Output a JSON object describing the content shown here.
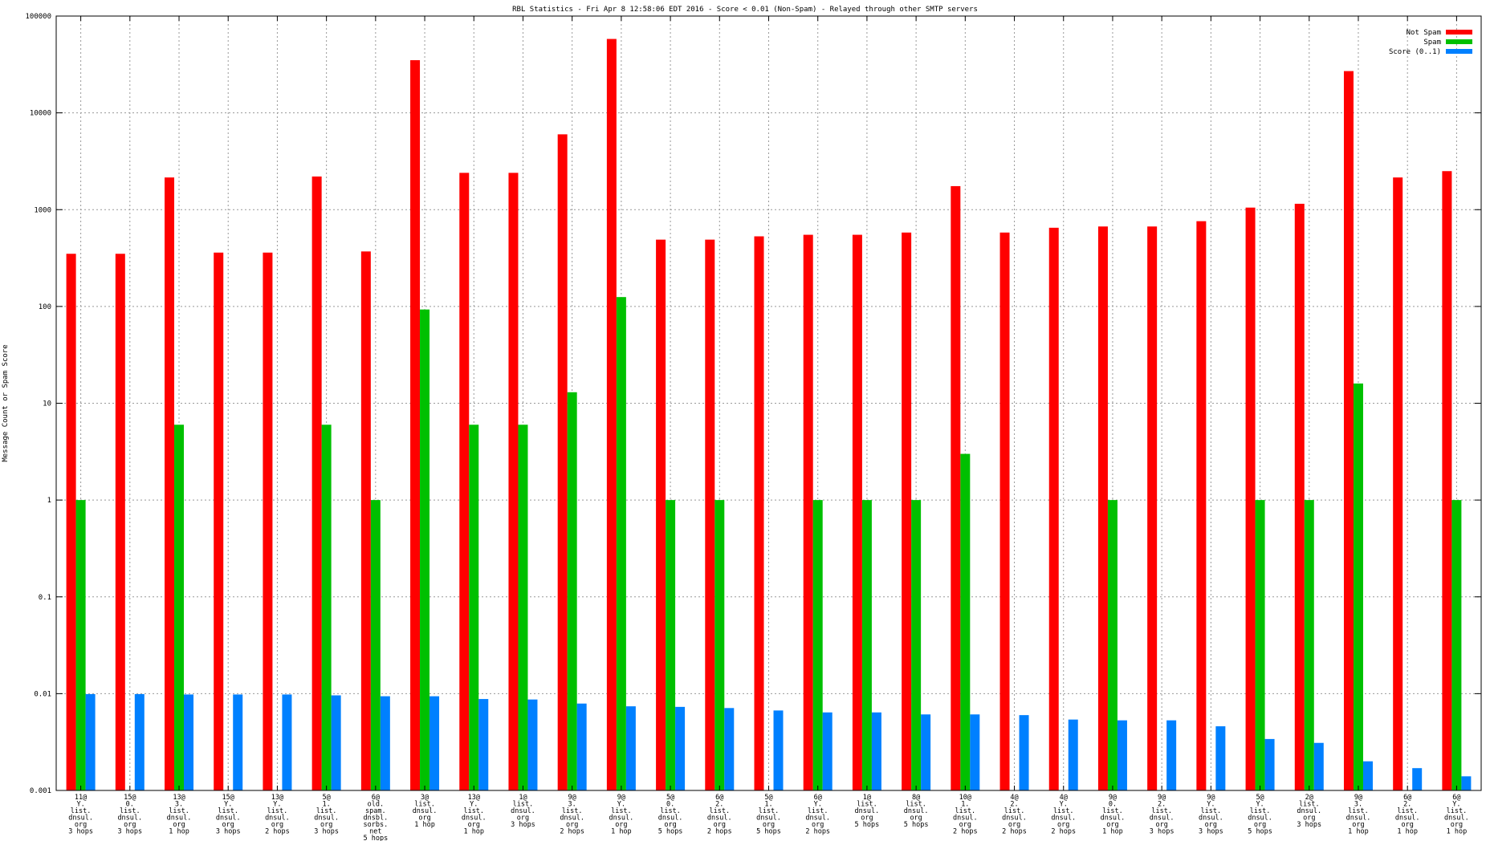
{
  "chart_data": {
    "type": "bar",
    "title": "RBL Statistics - Fri Apr  8 12:58:06 EDT 2016 - Score < 0.01 (Non-Spam) - Relayed through other SMTP servers",
    "xlabel": "",
    "ylabel": "Message Count or Spam Score",
    "yscale": "log",
    "ylim": [
      0.001,
      100000
    ],
    "yticks": [
      {
        "value": 0.001,
        "label": "0.001"
      },
      {
        "value": 0.01,
        "label": "0.01"
      },
      {
        "value": 0.1,
        "label": "0.1"
      },
      {
        "value": 1,
        "label": "1"
      },
      {
        "value": 10,
        "label": "10"
      },
      {
        "value": 100,
        "label": "100"
      },
      {
        "value": 1000,
        "label": "1000"
      },
      {
        "value": 10000,
        "label": "10000"
      },
      {
        "value": 100000,
        "label": "100000"
      }
    ],
    "grid": true,
    "legend_position": "top-right",
    "categories": [
      [
        "11@",
        "Y.",
        "list.",
        "dnsul.",
        "org",
        "3 hops"
      ],
      [
        "15@",
        "0.",
        "list.",
        "dnsul.",
        "org",
        "3 hops"
      ],
      [
        "13@",
        "3.",
        "list.",
        "dnsul.",
        "org",
        "1 hop"
      ],
      [
        "15@",
        "Y.",
        "list.",
        "dnsul.",
        "org",
        "3 hops"
      ],
      [
        "13@",
        "Y.",
        "list.",
        "dnsul.",
        "org",
        "2 hops"
      ],
      [
        "5@",
        "1.",
        "list.",
        "dnsul.",
        "org",
        "3 hops"
      ],
      [
        "6@",
        "old.",
        "spam.",
        "dnsbl.",
        "sorbs.",
        "net",
        "5 hops"
      ],
      [
        "3@",
        "list.",
        "dnsul.",
        "org",
        "1 hop"
      ],
      [
        "13@",
        "Y.",
        "list.",
        "dnsul.",
        "org",
        "1 hop"
      ],
      [
        "1@",
        "list.",
        "dnsul.",
        "org",
        "3 hops"
      ],
      [
        "9@",
        "3.",
        "list.",
        "dnsul.",
        "org",
        "2 hops"
      ],
      [
        "9@",
        "Y.",
        "list.",
        "dnsul.",
        "org",
        "1 hop"
      ],
      [
        "5@",
        "0.",
        "list.",
        "dnsul.",
        "org",
        "5 hops"
      ],
      [
        "6@",
        "2.",
        "list.",
        "dnsul.",
        "org",
        "2 hops"
      ],
      [
        "5@",
        "1.",
        "list.",
        "dnsul.",
        "org",
        "5 hops"
      ],
      [
        "6@",
        "Y.",
        "list.",
        "dnsul.",
        "org",
        "2 hops"
      ],
      [
        "1@",
        "list.",
        "dnsul.",
        "org",
        "5 hops"
      ],
      [
        "8@",
        "list.",
        "dnsul.",
        "org",
        "5 hops"
      ],
      [
        "10@",
        "1.",
        "list.",
        "dnsul.",
        "org",
        "2 hops"
      ],
      [
        "4@",
        "2.",
        "list.",
        "dnsul.",
        "org",
        "2 hops"
      ],
      [
        "4@",
        "Y.",
        "list.",
        "dnsul.",
        "org",
        "2 hops"
      ],
      [
        "9@",
        "0.",
        "list.",
        "dnsul.",
        "org",
        "1 hop"
      ],
      [
        "9@",
        "2.",
        "list.",
        "dnsul.",
        "org",
        "3 hops"
      ],
      [
        "9@",
        "Y.",
        "list.",
        "dnsul.",
        "org",
        "3 hops"
      ],
      [
        "5@",
        "Y.",
        "list.",
        "dnsul.",
        "org",
        "5 hops"
      ],
      [
        "2@",
        "list.",
        "dnsul.",
        "org",
        "3 hops"
      ],
      [
        "9@",
        "3.",
        "list.",
        "dnsul.",
        "org",
        "1 hop"
      ],
      [
        "6@",
        "2.",
        "list.",
        "dnsul.",
        "org",
        "1 hop"
      ],
      [
        "6@",
        "Y.",
        "list.",
        "dnsul.",
        "org",
        "1 hop"
      ]
    ],
    "series": [
      {
        "name": "Not Spam",
        "color": "#ff0000",
        "values": [
          350,
          350,
          2150,
          360,
          360,
          2200,
          370,
          35000,
          2400,
          2400,
          6000,
          58000,
          490,
          490,
          530,
          550,
          550,
          580,
          1750,
          580,
          650,
          670,
          670,
          760,
          1050,
          1150,
          27000,
          2150,
          2500
        ]
      },
      {
        "name": "Spam",
        "color": "#00c000",
        "values": [
          1,
          null,
          6,
          null,
          null,
          6,
          1,
          93,
          6,
          6,
          13,
          125,
          1,
          1,
          null,
          1,
          1,
          1,
          3,
          null,
          null,
          1,
          null,
          null,
          1,
          1,
          16,
          null,
          1
        ]
      },
      {
        "name": "Score (0..1)",
        "color": "#0080ff",
        "values": [
          0.0099,
          0.0099,
          0.0098,
          0.0098,
          0.0098,
          0.0096,
          0.0094,
          0.0094,
          0.0088,
          0.0087,
          0.0079,
          0.0074,
          0.0073,
          0.0071,
          0.0067,
          0.0064,
          0.0064,
          0.0061,
          0.0061,
          0.006,
          0.0054,
          0.0053,
          0.0053,
          0.0046,
          0.0034,
          0.0031,
          0.002,
          0.0017,
          0.0014
        ]
      }
    ]
  }
}
